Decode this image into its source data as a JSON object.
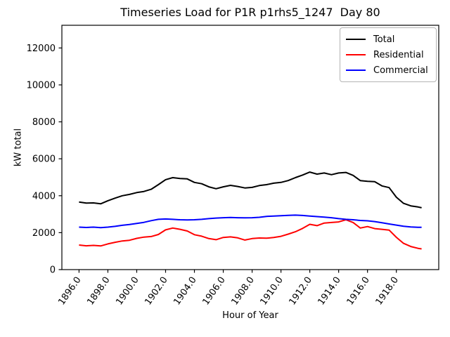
{
  "chart_data": {
    "type": "line",
    "title": "Timeseries Load for P1R p1rhs5_1247  Day 80",
    "xlabel": "Hour of Year",
    "ylabel": "kW total",
    "xlim": [
      1894.81,
      1920.94
    ],
    "ylim": [
      0,
      13228
    ],
    "grid": false,
    "legend_position": "upper right",
    "xtick_rotation": -55,
    "xticks": {
      "values": [
        1896,
        1898,
        1900,
        1902,
        1904,
        1906,
        1908,
        1910,
        1912,
        1914,
        1916,
        1918
      ],
      "labels": [
        "1896.0",
        "1898.0",
        "1900.0",
        "1902.0",
        "1904.0",
        "1906.0",
        "1908.0",
        "1910.0",
        "1912.0",
        "1914.0",
        "1916.0",
        "1918.0"
      ]
    },
    "yticks": {
      "values": [
        0,
        2000,
        4000,
        6000,
        8000,
        10000,
        12000
      ],
      "labels": [
        "0",
        "2000",
        "4000",
        "6000",
        "8000",
        "10000",
        "12000"
      ]
    },
    "x": [
      1896.0,
      1896.5,
      1897.0,
      1897.5,
      1898.0,
      1898.5,
      1899.0,
      1899.5,
      1900.0,
      1900.5,
      1901.0,
      1901.5,
      1902.0,
      1902.5,
      1903.0,
      1903.5,
      1904.0,
      1904.5,
      1905.0,
      1905.5,
      1906.0,
      1906.5,
      1907.0,
      1907.5,
      1908.0,
      1908.5,
      1909.0,
      1909.5,
      1910.0,
      1910.5,
      1911.0,
      1911.5,
      1912.0,
      1912.5,
      1913.0,
      1913.5,
      1914.0,
      1914.5,
      1915.0,
      1915.5,
      1916.0,
      1916.5,
      1917.0,
      1917.5,
      1918.0,
      1918.5,
      1919.0,
      1919.5,
      1919.75
    ],
    "series": [
      {
        "name": "Total",
        "color": "#000000",
        "values": [
          3660,
          3600,
          3610,
          3560,
          3730,
          3870,
          4000,
          4070,
          4170,
          4230,
          4350,
          4600,
          4870,
          4980,
          4930,
          4910,
          4720,
          4650,
          4480,
          4380,
          4480,
          4560,
          4500,
          4420,
          4450,
          4550,
          4600,
          4680,
          4720,
          4820,
          4980,
          5120,
          5280,
          5170,
          5230,
          5140,
          5230,
          5260,
          5100,
          4820,
          4780,
          4760,
          4530,
          4440,
          3920,
          3590,
          3450,
          3390,
          3350
        ]
      },
      {
        "name": "Residential",
        "color": "#ff0000",
        "values": [
          1330,
          1290,
          1310,
          1280,
          1390,
          1480,
          1550,
          1590,
          1690,
          1760,
          1790,
          1900,
          2150,
          2250,
          2180,
          2090,
          1890,
          1810,
          1680,
          1620,
          1740,
          1770,
          1720,
          1600,
          1680,
          1710,
          1700,
          1740,
          1800,
          1920,
          2050,
          2230,
          2450,
          2380,
          2520,
          2550,
          2580,
          2700,
          2550,
          2250,
          2330,
          2220,
          2180,
          2140,
          1750,
          1420,
          1250,
          1150,
          1120
        ]
      },
      {
        "name": "Commercial",
        "color": "#0000ff",
        "values": [
          2300,
          2280,
          2300,
          2270,
          2300,
          2340,
          2400,
          2440,
          2500,
          2560,
          2650,
          2720,
          2740,
          2720,
          2700,
          2690,
          2700,
          2720,
          2760,
          2790,
          2810,
          2820,
          2810,
          2800,
          2810,
          2830,
          2880,
          2900,
          2920,
          2940,
          2950,
          2930,
          2900,
          2870,
          2840,
          2810,
          2760,
          2720,
          2700,
          2660,
          2640,
          2600,
          2540,
          2470,
          2410,
          2350,
          2310,
          2290,
          2290
        ]
      }
    ]
  }
}
